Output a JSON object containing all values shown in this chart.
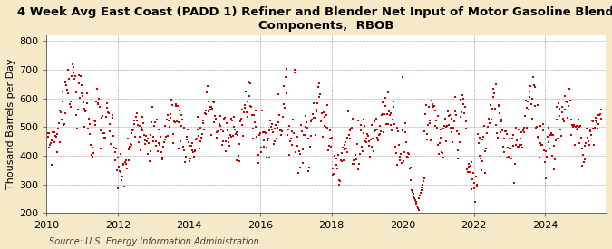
{
  "title_line1": "4 Week Avg East Coast (PADD 1) Refiner and Blender Net Input of Motor Gasoline Blending",
  "title_line2": "Components,  RBOB",
  "ylabel": "Thousand Barrels per Day",
  "source": "Source: U.S. Energy Information Administration",
  "xlim": [
    2010.0,
    2025.7
  ],
  "ylim": [
    200,
    820
  ],
  "yticks": [
    200,
    300,
    400,
    500,
    600,
    700,
    800
  ],
  "xticks": [
    2010,
    2012,
    2014,
    2016,
    2018,
    2020,
    2022,
    2024
  ],
  "marker_color": "#cc0000",
  "figure_bg": "#f5e9c8",
  "plot_bg": "#ffffff",
  "grid_color": "#999999",
  "title_fontsize": 9.5,
  "axis_fontsize": 8.0,
  "ylabel_fontsize": 8.0,
  "source_fontsize": 7.0,
  "tick_fontsize": 8.0
}
